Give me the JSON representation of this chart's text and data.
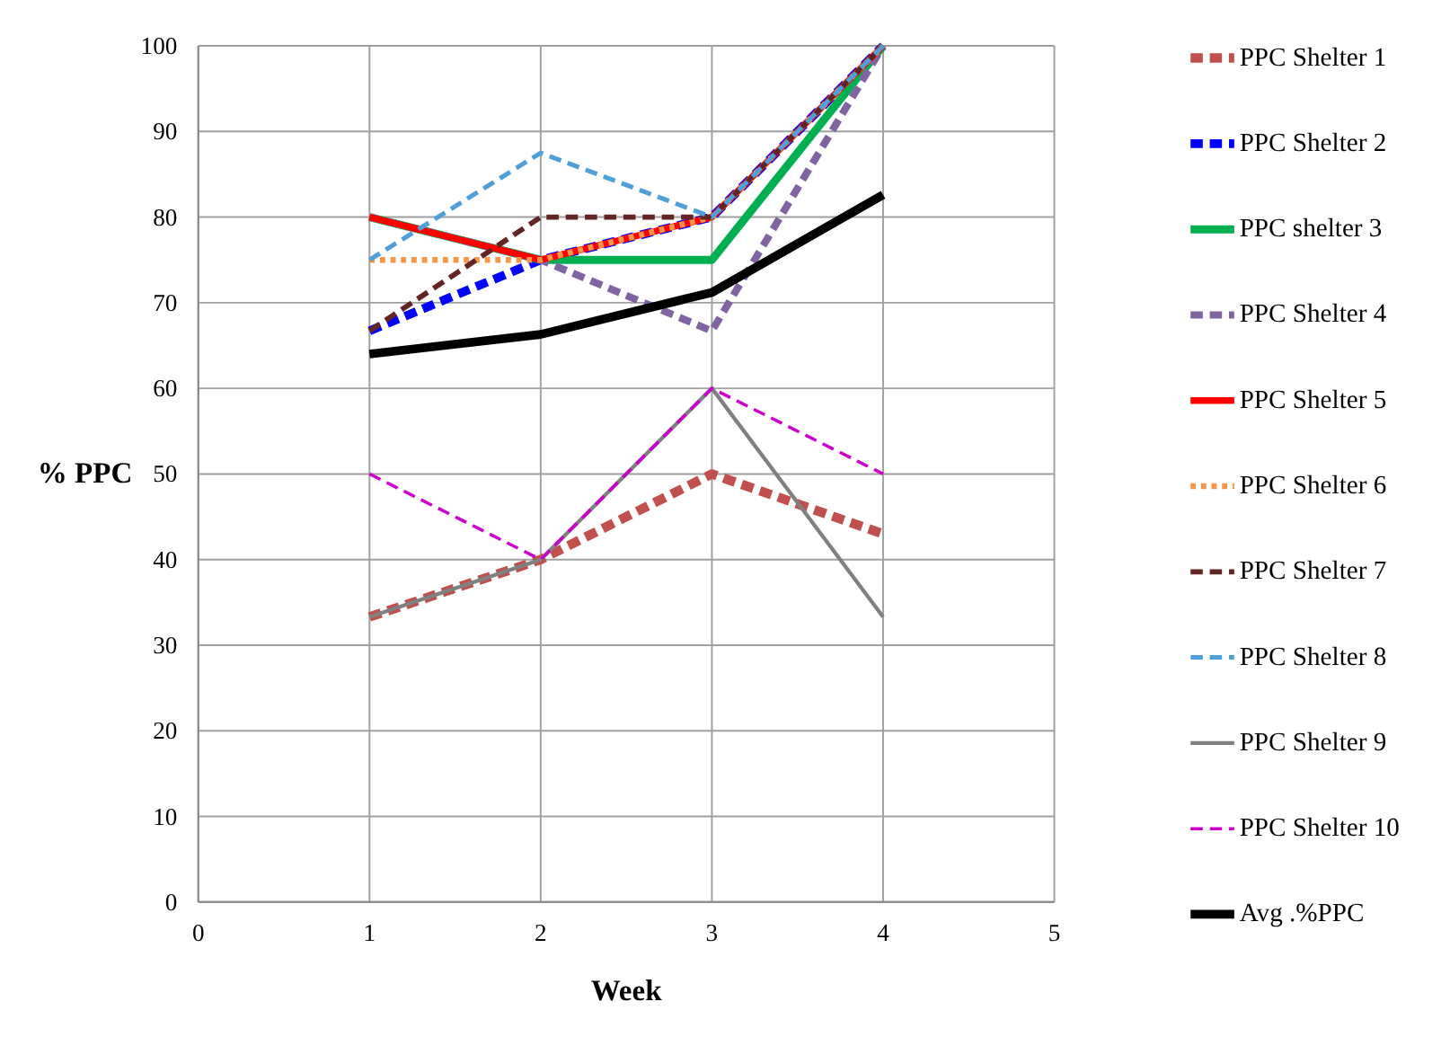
{
  "chart_data": {
    "type": "line",
    "xlabel": "Week",
    "ylabel": "% PPC",
    "x": [
      1,
      2,
      3,
      4
    ],
    "xlim": [
      0,
      5
    ],
    "xticks": [
      0,
      1,
      2,
      3,
      4,
      5
    ],
    "ylim": [
      0,
      100
    ],
    "yticks": [
      0,
      10,
      20,
      30,
      40,
      50,
      60,
      70,
      80,
      90,
      100
    ],
    "grid": true,
    "legend": "right",
    "series": [
      {
        "name": "PPC Shelter 1",
        "color": "#c0504d",
        "line_style": "dashed",
        "values": [
          33.3,
          40,
          50,
          43
        ]
      },
      {
        "name": "PPC Shelter 2",
        "color": "#0000ff",
        "line_style": "dashed",
        "values": [
          66.7,
          75,
          80,
          100
        ]
      },
      {
        "name": "PPC shelter 3",
        "color": "#00b050",
        "line_style": "solid",
        "values": [
          80,
          75,
          75,
          100
        ]
      },
      {
        "name": "PPC Shelter 4",
        "color": "#8064a2",
        "line_style": "dashed",
        "values": [
          80,
          75,
          66.7,
          100
        ]
      },
      {
        "name": "PPC Shelter 5",
        "color": "#ff0000",
        "line_style": "solid",
        "values": [
          80,
          75,
          80,
          100
        ]
      },
      {
        "name": "PPC Shelter 6",
        "color": "#f79646",
        "line_style": "dotted",
        "values": [
          75,
          75,
          80,
          100
        ]
      },
      {
        "name": "PPC Shelter 7",
        "color": "#632523",
        "line_style": "dashed",
        "values": [
          66.7,
          80,
          80,
          100
        ]
      },
      {
        "name": "PPC Shelter 8",
        "color": "#4f9fd8",
        "line_style": "dashed",
        "values": [
          75,
          87.5,
          80,
          100
        ]
      },
      {
        "name": "PPC Shelter 9",
        "color": "#808080",
        "line_style": "solid",
        "values": [
          33.3,
          40,
          60,
          33.3
        ]
      },
      {
        "name": "PPC Shelter 10",
        "color": "#cc00cc",
        "line_style": "dashed",
        "values": [
          50,
          40,
          60,
          50
        ]
      },
      {
        "name": "Avg .%PPC",
        "color": "#000000",
        "line_style": "solid",
        "values": [
          64,
          66.3,
          71.2,
          82.6
        ]
      }
    ]
  }
}
